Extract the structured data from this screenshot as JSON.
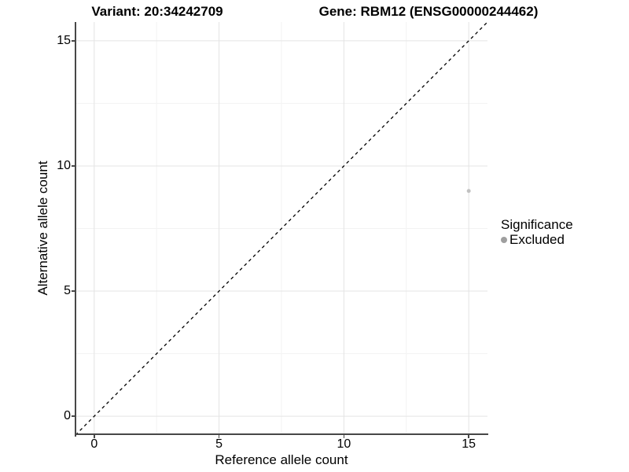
{
  "chart_data": {
    "type": "scatter",
    "titles": [
      "Variant: 20:34242709",
      "Gene: RBM12 (ENSG00000244462)"
    ],
    "xlabel": "Reference allele count",
    "ylabel": "Alternative allele count",
    "xlim": [
      -0.75,
      15.75
    ],
    "ylim": [
      -0.75,
      15.75
    ],
    "x_ticks": [
      0,
      5,
      10,
      15
    ],
    "y_ticks": [
      0,
      5,
      10,
      15
    ],
    "x_minor_ticks": [
      2.5,
      7.5,
      12.5
    ],
    "y_minor_ticks": [
      2.5,
      7.5,
      12.5
    ],
    "grid": true,
    "series": [
      {
        "name": "Excluded",
        "color": "#c1c1c1",
        "marker_px": 5,
        "points": [
          {
            "x": 15,
            "y": 9
          }
        ]
      }
    ],
    "reference_line": {
      "type": "identity",
      "slope": 1,
      "intercept": 0,
      "style": "dashed",
      "color": "#000000"
    },
    "legend": {
      "title": "Significance",
      "position": "right",
      "items": [
        {
          "label": "Excluded",
          "color": "#9f9f9f"
        }
      ]
    },
    "colors": {
      "grid_major": "#e4e4e4",
      "grid_minor": "#f3f3f3",
      "axis_line": "#474747",
      "text": "#000000"
    }
  }
}
